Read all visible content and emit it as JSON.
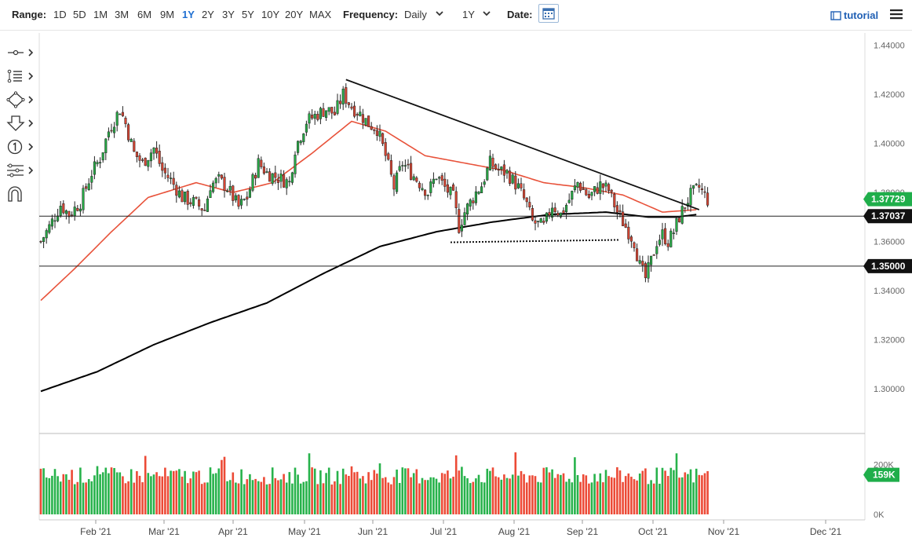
{
  "toolbar": {
    "range_label": "Range:",
    "ranges": [
      "1D",
      "5D",
      "1M",
      "3M",
      "6M",
      "9M",
      "1Y",
      "2Y",
      "3Y",
      "5Y",
      "10Y",
      "20Y",
      "MAX"
    ],
    "active_range": "1Y",
    "frequency_label": "Frequency:",
    "frequency_value": "Daily",
    "period_value": "1Y",
    "date_label": "Date:",
    "tutorial_label": "tutorial"
  },
  "left_tools": [
    "crosshair-icon",
    "fibonacci-icon",
    "shapes-icon",
    "arrow-icon",
    "annotation-icon",
    "indicator-icon",
    "magnet-icon"
  ],
  "chart_data": {
    "type": "candlestick",
    "y_axis": {
      "min": 1.285,
      "max": 1.445,
      "ticks": [
        "1.44000",
        "1.42000",
        "1.40000",
        "1.38000",
        "1.36000",
        "1.34000",
        "1.32000",
        "1.30000"
      ]
    },
    "x_axis": {
      "ticks": [
        "Feb '21",
        "Mar '21",
        "Apr '21",
        "May '21",
        "Jun '21",
        "Jul '21",
        "Aug '21",
        "Sep '21",
        "Oct '21",
        "Nov '21",
        "Dec '21"
      ]
    },
    "price_badges": [
      {
        "label": "1.37729",
        "value": 1.37729,
        "color": "#1fae4a"
      },
      {
        "label": "1.37037",
        "value": 1.37037,
        "color": "#111111"
      },
      {
        "label": "1.35000",
        "value": 1.35,
        "color": "#111111"
      }
    ],
    "horizontal_lines": [
      1.37037,
      1.35
    ],
    "close_path": [
      [
        0,
        1.36
      ],
      [
        3,
        1.366
      ],
      [
        7,
        1.375
      ],
      [
        10,
        1.371
      ],
      [
        14,
        1.376
      ],
      [
        18,
        1.388
      ],
      [
        21,
        1.394
      ],
      [
        24,
        1.405
      ],
      [
        28,
        1.414
      ],
      [
        30,
        1.408
      ],
      [
        33,
        1.396
      ],
      [
        36,
        1.392
      ],
      [
        40,
        1.398
      ],
      [
        43,
        1.389
      ],
      [
        46,
        1.385
      ],
      [
        50,
        1.378
      ],
      [
        54,
        1.376
      ],
      [
        58,
        1.373
      ],
      [
        60,
        1.383
      ],
      [
        63,
        1.385
      ],
      [
        66,
        1.382
      ],
      [
        70,
        1.374
      ],
      [
        73,
        1.378
      ],
      [
        77,
        1.392
      ],
      [
        80,
        1.388
      ],
      [
        84,
        1.386
      ],
      [
        88,
        1.384
      ],
      [
        90,
        1.398
      ],
      [
        94,
        1.409
      ],
      [
        98,
        1.412
      ],
      [
        101,
        1.414
      ],
      [
        104,
        1.412
      ],
      [
        107,
        1.42
      ],
      [
        110,
        1.415
      ],
      [
        113,
        1.412
      ],
      [
        116,
        1.408
      ],
      [
        119,
        1.406
      ],
      [
        122,
        1.395
      ],
      [
        125,
        1.382
      ],
      [
        128,
        1.392
      ],
      [
        131,
        1.388
      ],
      [
        134,
        1.384
      ],
      [
        137,
        1.38
      ],
      [
        140,
        1.387
      ],
      [
        143,
        1.382
      ],
      [
        146,
        1.378
      ],
      [
        148,
        1.366
      ],
      [
        150,
        1.372
      ],
      [
        154,
        1.38
      ],
      [
        156,
        1.383
      ],
      [
        159,
        1.392
      ],
      [
        162,
        1.389
      ],
      [
        165,
        1.388
      ],
      [
        169,
        1.382
      ],
      [
        172,
        1.375
      ],
      [
        174,
        1.368
      ],
      [
        178,
        1.366
      ],
      [
        181,
        1.375
      ],
      [
        184,
        1.371
      ],
      [
        187,
        1.377
      ],
      [
        190,
        1.384
      ],
      [
        194,
        1.378
      ],
      [
        198,
        1.383
      ],
      [
        201,
        1.381
      ],
      [
        204,
        1.372
      ],
      [
        206,
        1.368
      ],
      [
        208,
        1.364
      ],
      [
        210,
        1.36
      ],
      [
        212,
        1.35
      ],
      [
        214,
        1.345
      ],
      [
        216,
        1.352
      ],
      [
        218,
        1.36
      ],
      [
        220,
        1.363
      ],
      [
        222,
        1.36
      ],
      [
        224,
        1.364
      ],
      [
        226,
        1.37
      ],
      [
        228,
        1.375
      ],
      [
        230,
        1.379
      ],
      [
        233,
        1.382
      ],
      [
        236,
        1.377
      ]
    ],
    "ma_red": [
      [
        0,
        1.336
      ],
      [
        12,
        1.349
      ],
      [
        25,
        1.364
      ],
      [
        38,
        1.378
      ],
      [
        55,
        1.384
      ],
      [
        68,
        1.38
      ],
      [
        82,
        1.384
      ],
      [
        96,
        1.396
      ],
      [
        110,
        1.409
      ],
      [
        122,
        1.405
      ],
      [
        136,
        1.395
      ],
      [
        150,
        1.392
      ],
      [
        164,
        1.389
      ],
      [
        178,
        1.384
      ],
      [
        192,
        1.382
      ],
      [
        206,
        1.379
      ],
      [
        220,
        1.372
      ],
      [
        232,
        1.373
      ]
    ],
    "ma_black": [
      [
        0,
        1.299
      ],
      [
        20,
        1.307
      ],
      [
        40,
        1.318
      ],
      [
        60,
        1.327
      ],
      [
        80,
        1.335
      ],
      [
        100,
        1.347
      ],
      [
        120,
        1.358
      ],
      [
        140,
        1.364
      ],
      [
        160,
        1.368
      ],
      [
        180,
        1.371
      ],
      [
        200,
        1.372
      ],
      [
        215,
        1.37
      ],
      [
        225,
        1.37
      ],
      [
        232,
        1.371
      ]
    ],
    "trendlines": [
      {
        "from": [
          108,
          1.426
        ],
        "to": [
          233,
          1.373
        ],
        "style": "solid"
      },
      {
        "from": [
          145,
          1.3597
        ],
        "to": [
          205,
          1.3607
        ],
        "style": "dotted"
      }
    ],
    "volume": {
      "max": 300000,
      "ticks": [
        "200K",
        "0K"
      ],
      "badge": {
        "label": "159K",
        "value": 159000,
        "color": "#1fae4a"
      }
    }
  }
}
